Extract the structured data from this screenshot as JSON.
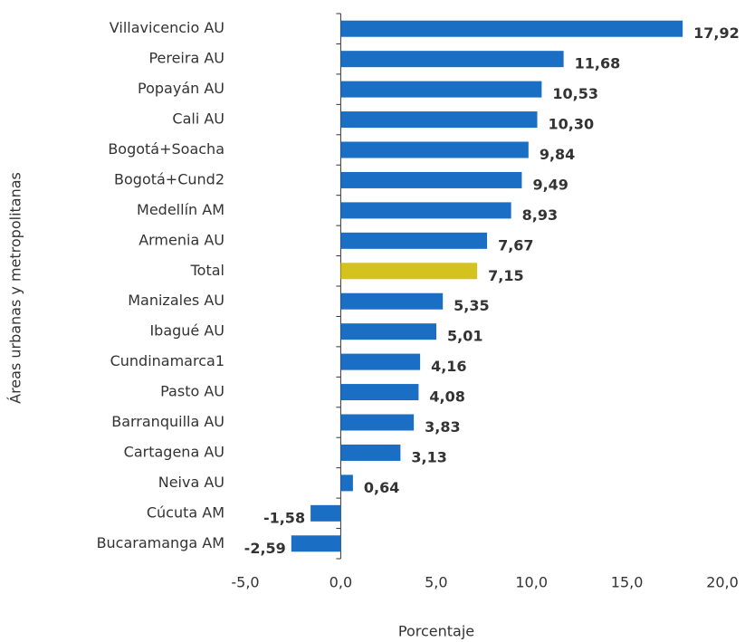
{
  "chart_data": {
    "type": "hbar",
    "ylabel": "Áreas urbanas y metropolitanas",
    "xlabel": "Porcentaje",
    "categories": [
      "Villavicencio AU",
      "Pereira AU",
      "Popayán AU",
      "Cali AU",
      "Bogotá+Soacha",
      "Bogotá+Cund2",
      "Medellín AM",
      "Armenia AU",
      "Total",
      "Manizales AU",
      "Ibagué AU",
      "Cundinamarca1",
      "Pasto AU",
      "Barranquilla AU",
      "Cartagena AU",
      "Neiva AU",
      "Cúcuta AM",
      "Bucaramanga AM"
    ],
    "values": [
      17.92,
      11.68,
      10.53,
      10.3,
      9.84,
      9.49,
      8.93,
      7.67,
      7.15,
      5.35,
      5.01,
      4.16,
      4.08,
      3.83,
      3.13,
      0.64,
      -1.58,
      -2.59
    ],
    "value_labels": [
      "17,92",
      "11,68",
      "10,53",
      "10,30",
      "9,84",
      "9,49",
      "8,93",
      "7,67",
      "7,15",
      "5,35",
      "5,01",
      "4,16",
      "4,08",
      "3,83",
      "3,13",
      "0,64",
      "-1,58",
      "-2,59"
    ],
    "colors": [
      "#1a6fc4",
      "#1a6fc4",
      "#1a6fc4",
      "#1a6fc4",
      "#1a6fc4",
      "#1a6fc4",
      "#1a6fc4",
      "#1a6fc4",
      "#d4c21e",
      "#1a6fc4",
      "#1a6fc4",
      "#1a6fc4",
      "#1a6fc4",
      "#1a6fc4",
      "#1a6fc4",
      "#1a6fc4",
      "#1a6fc4",
      "#1a6fc4"
    ],
    "xlim": [
      -5,
      20
    ],
    "xticks": [
      {
        "value": -5,
        "label": "-5,0"
      },
      {
        "value": 0,
        "label": "0,0"
      },
      {
        "value": 5,
        "label": "5,0"
      },
      {
        "value": 10,
        "label": "10,0"
      },
      {
        "value": 15,
        "label": "15,0"
      },
      {
        "value": 20,
        "label": "20,0"
      }
    ],
    "grid": false
  }
}
